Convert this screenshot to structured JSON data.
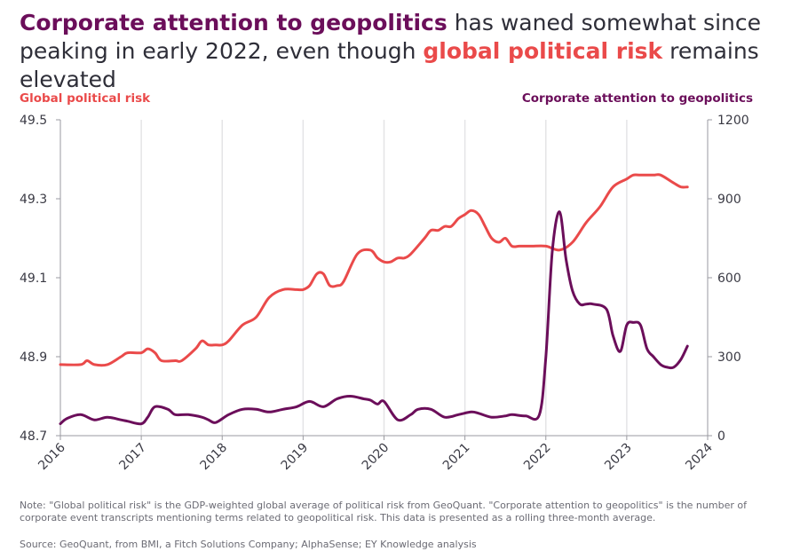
{
  "headline": {
    "part1": "Corporate attention to geopolitics",
    "part2": " has waned somewhat since peaking in early 2022, even though ",
    "part3": "global political risk",
    "part4": " remains elevated"
  },
  "colors": {
    "political_risk": "#ea4a4a",
    "corporate_attention": "#6b0e5a",
    "grid": "#e4e4e6",
    "axis": "#9a9aa0"
  },
  "chart_data": {
    "type": "line",
    "left_axis_label": "Global political risk",
    "right_axis_label": "Corporate attention to geopolitics",
    "xlim": [
      2016,
      2024
    ],
    "x_ticks": [
      "2016",
      "2017",
      "2018",
      "2019",
      "2020",
      "2021",
      "2022",
      "2023",
      "2024"
    ],
    "ylim_left": [
      48.7,
      49.5
    ],
    "y_ticks_left": [
      "49.5",
      "49.3",
      "49.1",
      "48.9",
      "48.7"
    ],
    "ylim_right": [
      0,
      1200
    ],
    "y_ticks_right": [
      "1200",
      "900",
      "600",
      "300",
      "0"
    ],
    "grid": "vertical",
    "series": [
      {
        "name": "Global political risk",
        "axis": "left",
        "x": [
          2016.0,
          2016.25,
          2016.33,
          2016.42,
          2016.58,
          2016.75,
          2016.83,
          2017.0,
          2017.08,
          2017.17,
          2017.25,
          2017.42,
          2017.5,
          2017.67,
          2017.75,
          2017.83,
          2017.92,
          2018.0,
          2018.08,
          2018.25,
          2018.42,
          2018.58,
          2018.75,
          2018.92,
          2019.0,
          2019.08,
          2019.17,
          2019.25,
          2019.33,
          2019.42,
          2019.5,
          2019.67,
          2019.83,
          2019.92,
          2020.0,
          2020.08,
          2020.17,
          2020.25,
          2020.33,
          2020.5,
          2020.58,
          2020.67,
          2020.75,
          2020.83,
          2020.92,
          2021.0,
          2021.08,
          2021.17,
          2021.25,
          2021.33,
          2021.42,
          2021.5,
          2021.58,
          2021.67,
          2021.75,
          2021.83,
          2022.0,
          2022.17,
          2022.33,
          2022.5,
          2022.67,
          2022.83,
          2023.0,
          2023.08,
          2023.17,
          2023.33,
          2023.42,
          2023.58,
          2023.67,
          2023.75
        ],
        "values": [
          48.88,
          48.88,
          48.89,
          48.88,
          48.88,
          48.9,
          48.91,
          48.91,
          48.92,
          48.91,
          48.89,
          48.89,
          48.89,
          48.92,
          48.94,
          48.93,
          48.93,
          48.93,
          48.94,
          48.98,
          49.0,
          49.05,
          49.07,
          49.07,
          49.07,
          49.08,
          49.11,
          49.11,
          49.08,
          49.08,
          49.09,
          49.16,
          49.17,
          49.15,
          49.14,
          49.14,
          49.15,
          49.15,
          49.16,
          49.2,
          49.22,
          49.22,
          49.23,
          49.23,
          49.25,
          49.26,
          49.27,
          49.26,
          49.23,
          49.2,
          49.19,
          49.2,
          49.18,
          49.18,
          49.18,
          49.18,
          49.18,
          49.17,
          49.19,
          49.24,
          49.28,
          49.33,
          49.35,
          49.36,
          49.36,
          49.36,
          49.36,
          49.34,
          49.33,
          49.33
        ]
      },
      {
        "name": "Corporate attention to geopolitics",
        "axis": "right",
        "x": [
          2016.0,
          2016.08,
          2016.25,
          2016.42,
          2016.58,
          2016.75,
          2016.83,
          2017.0,
          2017.08,
          2017.17,
          2017.33,
          2017.42,
          2017.58,
          2017.75,
          2017.83,
          2017.92,
          2018.08,
          2018.25,
          2018.42,
          2018.58,
          2018.75,
          2018.92,
          2019.08,
          2019.25,
          2019.42,
          2019.58,
          2019.75,
          2019.83,
          2019.92,
          2020.0,
          2020.17,
          2020.33,
          2020.42,
          2020.58,
          2020.75,
          2020.92,
          2021.08,
          2021.17,
          2021.33,
          2021.5,
          2021.58,
          2021.75,
          2021.92,
          2022.0,
          2022.08,
          2022.17,
          2022.25,
          2022.33,
          2022.42,
          2022.5,
          2022.58,
          2022.75,
          2022.83,
          2022.92,
          2023.0,
          2023.08,
          2023.17,
          2023.25,
          2023.33,
          2023.42,
          2023.5,
          2023.58,
          2023.67,
          2023.75
        ],
        "values": [
          45,
          65,
          80,
          60,
          70,
          60,
          55,
          45,
          70,
          110,
          100,
          80,
          80,
          70,
          60,
          50,
          80,
          100,
          100,
          90,
          100,
          110,
          130,
          110,
          140,
          150,
          140,
          135,
          120,
          130,
          60,
          80,
          100,
          100,
          70,
          80,
          90,
          85,
          70,
          75,
          80,
          75,
          80,
          300,
          700,
          850,
          670,
          550,
          500,
          500,
          500,
          480,
          380,
          320,
          420,
          430,
          420,
          330,
          300,
          270,
          260,
          260,
          290,
          340
        ]
      }
    ]
  },
  "note": "Note: \"Global political risk\" is the GDP-weighted global average of political risk from GeoQuant. \"Corporate attention to geopolitics\" is the number of corporate event transcripts mentioning terms related to geopolitical risk. This data is presented as a rolling three-month average.",
  "source": "Source: GeoQuant, from BMI, a Fitch Solutions Company; AlphaSense; EY Knowledge analysis"
}
